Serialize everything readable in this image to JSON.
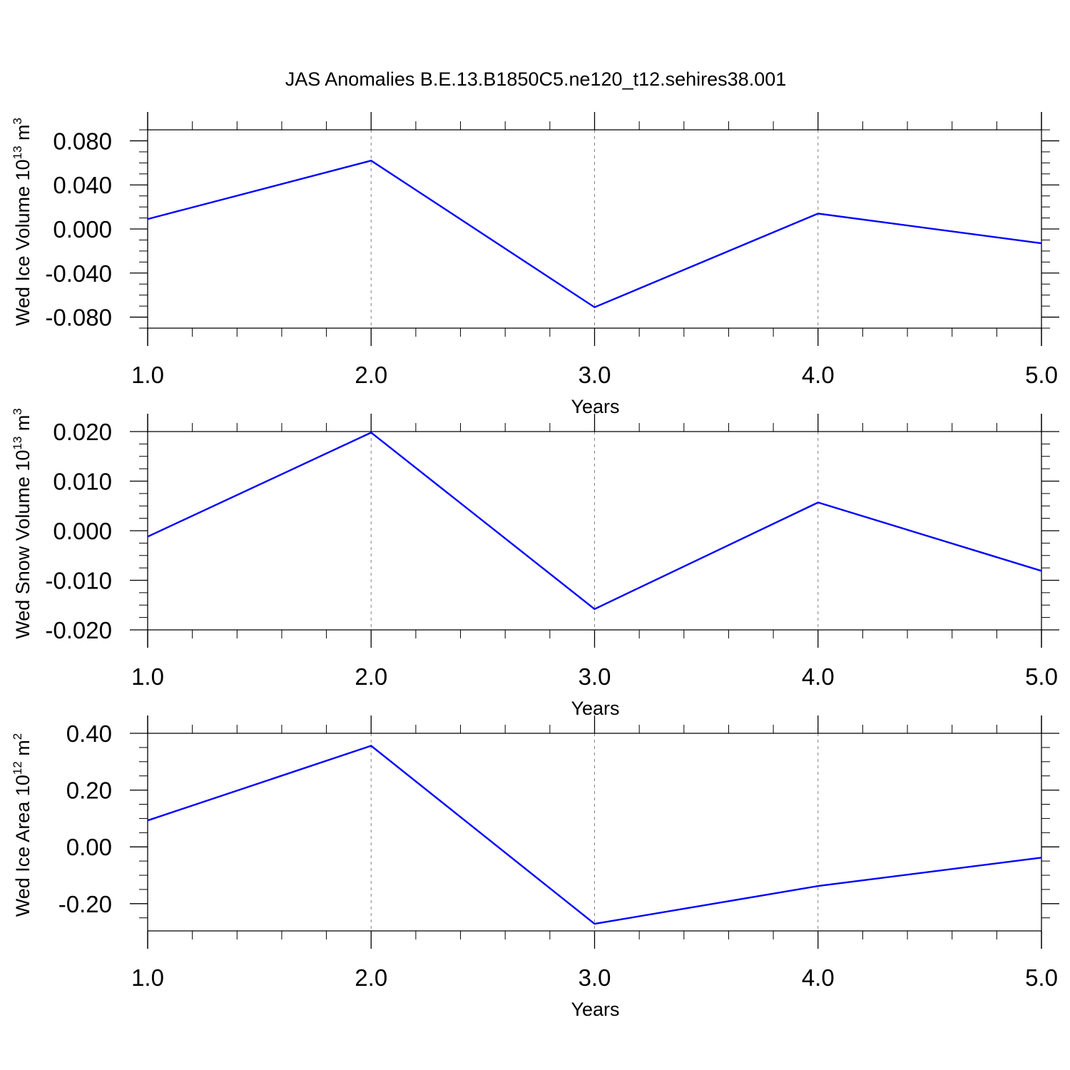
{
  "figure": {
    "title": "JAS Anomalies B.E.13.B1850C5.ne120_t12.sehires38.001"
  },
  "colors": {
    "line": "#0000ff",
    "axis": "#000000",
    "grid": "#808080",
    "background": "#ffffff"
  },
  "chart_data": [
    {
      "type": "line",
      "title": "",
      "xlabel": "Years",
      "ylabel": {
        "prefix": "Wed Ice Volume 10",
        "exponent": "13",
        "unit": " m",
        "unit_exp": "3"
      },
      "x": [
        1.0,
        2.0,
        3.0,
        4.0,
        5.0
      ],
      "series": [
        {
          "values": [
            0.009,
            0.062,
            -0.071,
            0.014,
            -0.013
          ]
        }
      ],
      "xlim": [
        1.0,
        5.0
      ],
      "ylim": [
        -0.09,
        0.09
      ],
      "xticks": [
        1.0,
        2.0,
        3.0,
        4.0,
        5.0
      ],
      "xtick_labels": [
        "1.0",
        "2.0",
        "3.0",
        "4.0",
        "5.0"
      ],
      "yticks": [
        -0.08,
        -0.04,
        0.0,
        0.04,
        0.08
      ],
      "ytick_labels": [
        "-0.080",
        "-0.040",
        "0.000",
        "0.040",
        "0.080"
      ],
      "grid": "x-dashed",
      "legend": "none"
    },
    {
      "type": "line",
      "title": "",
      "xlabel": "Years",
      "ylabel": {
        "prefix": "Wed Snow Volume 10",
        "exponent": "13",
        "unit": " m",
        "unit_exp": "3"
      },
      "x": [
        1.0,
        2.0,
        3.0,
        4.0,
        5.0
      ],
      "series": [
        {
          "values": [
            -0.0012,
            0.0198,
            -0.0158,
            0.0057,
            -0.0081
          ]
        }
      ],
      "xlim": [
        1.0,
        5.0
      ],
      "ylim": [
        -0.02,
        0.02
      ],
      "xticks": [
        1.0,
        2.0,
        3.0,
        4.0,
        5.0
      ],
      "xtick_labels": [
        "1.0",
        "2.0",
        "3.0",
        "4.0",
        "5.0"
      ],
      "yticks": [
        -0.02,
        -0.01,
        0.0,
        0.01,
        0.02
      ],
      "ytick_labels": [
        "-0.020",
        "-0.010",
        "0.000",
        "0.010",
        "0.020"
      ],
      "grid": "x-dashed",
      "legend": "none"
    },
    {
      "type": "line",
      "title": "",
      "xlabel": "Years",
      "ylabel": {
        "prefix": "Wed Ice Area 10",
        "exponent": "12",
        "unit": " m",
        "unit_exp": "2"
      },
      "x": [
        1.0,
        2.0,
        3.0,
        4.0,
        5.0
      ],
      "series": [
        {
          "values": [
            0.093,
            0.356,
            -0.271,
            -0.138,
            -0.038
          ]
        }
      ],
      "xlim": [
        1.0,
        5.0
      ],
      "ylim": [
        -0.296,
        0.4
      ],
      "xticks": [
        1.0,
        2.0,
        3.0,
        4.0,
        5.0
      ],
      "xtick_labels": [
        "1.0",
        "2.0",
        "3.0",
        "4.0",
        "5.0"
      ],
      "yticks": [
        -0.2,
        0.0,
        0.2,
        0.4
      ],
      "ytick_labels": [
        "-0.20",
        "0.00",
        "0.20",
        "0.40"
      ],
      "grid": "x-dashed",
      "legend": "none"
    }
  ]
}
